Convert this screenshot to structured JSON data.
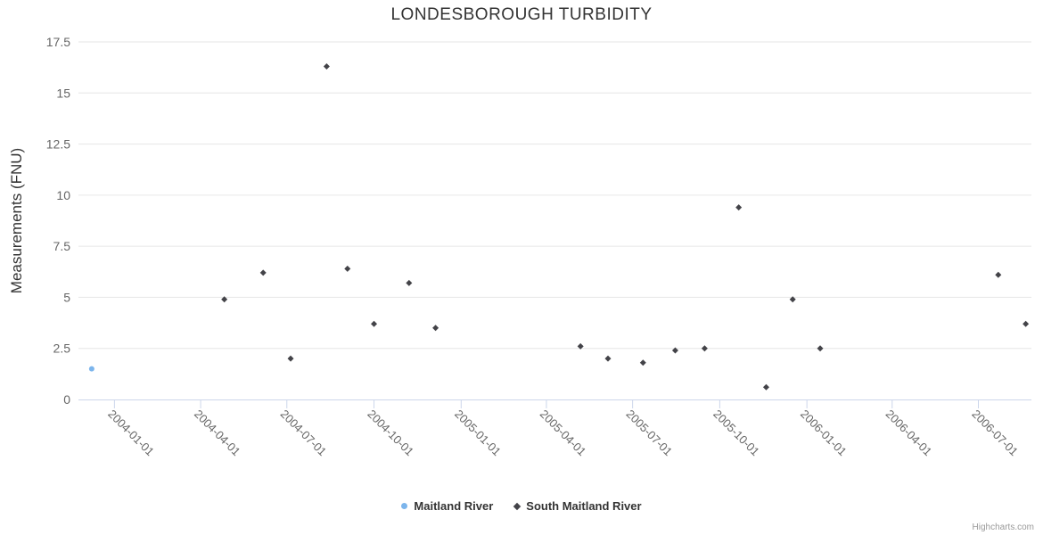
{
  "chart_data": {
    "type": "scatter",
    "title": "LONDESBOROUGH TURBIDITY",
    "ylabel": "Measurements (FNU)",
    "xlabel": "",
    "ylim": [
      0,
      17.5
    ],
    "yticks": [
      0,
      2.5,
      5,
      7.5,
      10,
      12.5,
      15,
      17.5
    ],
    "x_start": "2003-11-24",
    "x_end": "2006-08-26",
    "xticks": [
      "2004-01-01",
      "2004-04-01",
      "2004-07-01",
      "2004-10-01",
      "2005-01-01",
      "2005-04-01",
      "2005-07-01",
      "2005-10-01",
      "2006-01-01",
      "2006-04-01",
      "2006-07-01"
    ],
    "grid": "horizontal-only",
    "legend_position": "bottom-center",
    "colors": {
      "axis_line": "#ccd6eb",
      "gridline": "#e6e6e6",
      "axis_label": "#666666",
      "axis_title": "#333333",
      "title": "#333333"
    },
    "series": [
      {
        "name": "Maitland River",
        "marker": "circle",
        "color": "#7cb5ec",
        "points": [
          [
            "2003-12-08",
            1.5
          ]
        ]
      },
      {
        "name": "South Maitland River",
        "marker": "diamond",
        "color": "#434348",
        "points": [
          [
            "2004-04-26",
            4.9
          ],
          [
            "2004-06-06",
            6.2
          ],
          [
            "2004-07-05",
            2.0
          ],
          [
            "2004-08-12",
            16.3
          ],
          [
            "2004-09-03",
            6.4
          ],
          [
            "2004-10-01",
            3.7
          ],
          [
            "2004-11-07",
            5.7
          ],
          [
            "2004-12-05",
            3.5
          ],
          [
            "2005-05-07",
            2.6
          ],
          [
            "2005-06-05",
            2.0
          ],
          [
            "2005-07-12",
            1.8
          ],
          [
            "2005-08-15",
            2.4
          ],
          [
            "2005-09-15",
            2.5
          ],
          [
            "2005-10-21",
            9.4
          ],
          [
            "2005-11-19",
            0.6
          ],
          [
            "2005-12-17",
            4.9
          ],
          [
            "2006-01-15",
            2.5
          ],
          [
            "2006-07-22",
            6.1
          ],
          [
            "2006-08-20",
            3.7
          ]
        ]
      }
    ]
  },
  "credits": {
    "text": "Highcharts.com"
  }
}
